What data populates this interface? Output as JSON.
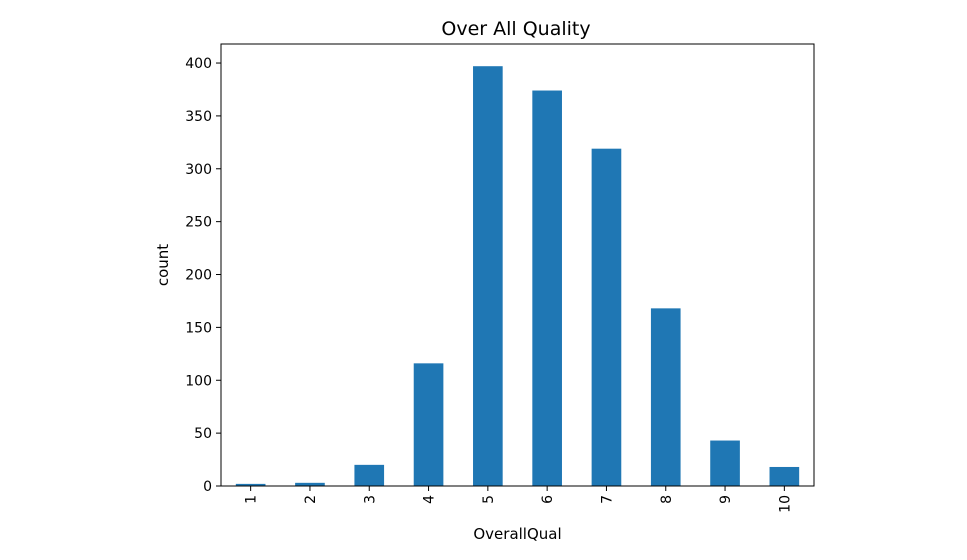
{
  "chart_data": {
    "type": "bar",
    "title": "Over All Quality",
    "xlabel": "OverallQual",
    "ylabel": "count",
    "categories": [
      "1",
      "2",
      "3",
      "4",
      "5",
      "6",
      "7",
      "8",
      "9",
      "10"
    ],
    "values": [
      2,
      3,
      20,
      116,
      397,
      374,
      319,
      168,
      43,
      18
    ],
    "ylim": [
      0,
      418
    ],
    "yticks": [
      0,
      50,
      100,
      150,
      200,
      250,
      300,
      350,
      400
    ],
    "grid": false,
    "bar_color": "#1f77b4",
    "x_tick_rotation": "vertical"
  }
}
